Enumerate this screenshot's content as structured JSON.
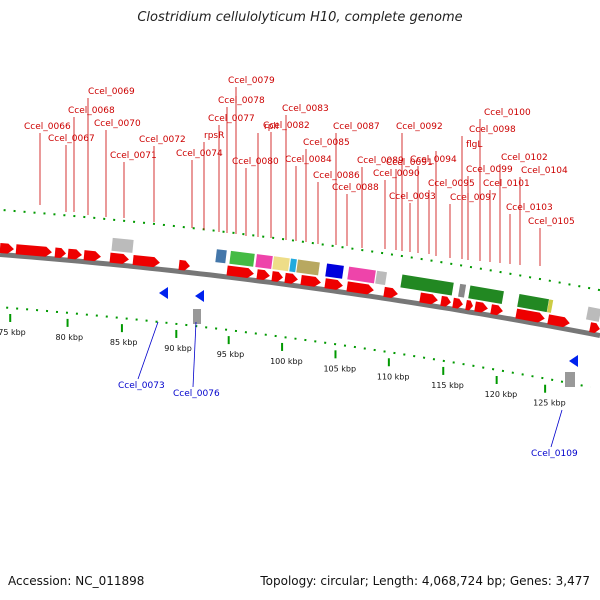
{
  "title": "Clostridium cellulolyticum H10, complete genome",
  "accession_label": "Accession: NC_011898",
  "topology_label": "Topology: circular; Length: 4,068,724 bp; Genes: 3,477",
  "scale_ticks": [
    "75 kbp",
    "80 kbp",
    "85 kbp",
    "90 kbp",
    "95 kbp",
    "100 kbp",
    "105 kbp",
    "110 kbp",
    "115 kbp",
    "120 kbp",
    "125 kbp"
  ],
  "forward_labels": [
    "Ccel_0066",
    "Ccel_0067",
    "Ccel_0068",
    "Ccel_0069",
    "Ccel_0070",
    "Ccel_0071",
    "Ccel_0072",
    "Ccel_0074",
    "rpsR",
    "Ccel_0077",
    "Ccel_0078",
    "Ccel_0079",
    "Ccel_0080",
    "rplI",
    "Ccel_0082",
    "Ccel_0083",
    "Ccel_0084",
    "Ccel_0085",
    "Ccel_0086",
    "Ccel_0087",
    "Ccel_0088",
    "Ccel_0089",
    "Ccel_0090",
    "Ccel_0091",
    "Ccel_0092",
    "Ccel_0093",
    "Ccel_0094",
    "Ccel_0095",
    "flgL",
    "Ccel_0097",
    "Ccel_0098",
    "Ccel_0099",
    "Ccel_0100",
    "Ccel_0101",
    "Ccel_0102",
    "Ccel_0103",
    "Ccel_0104",
    "Ccel_0105"
  ],
  "reverse_labels": [
    "Ccel_0073",
    "Ccel_0076",
    "Ccel_0109"
  ],
  "colors": {
    "forward_cds": "#ee0000",
    "reverse_cds": "#0022ee",
    "rna_feature": "#bbbbbb",
    "backbone": "#777777",
    "tick": "#009900",
    "forward_label": "#cc0000",
    "reverse_label": "#0000cc"
  }
}
